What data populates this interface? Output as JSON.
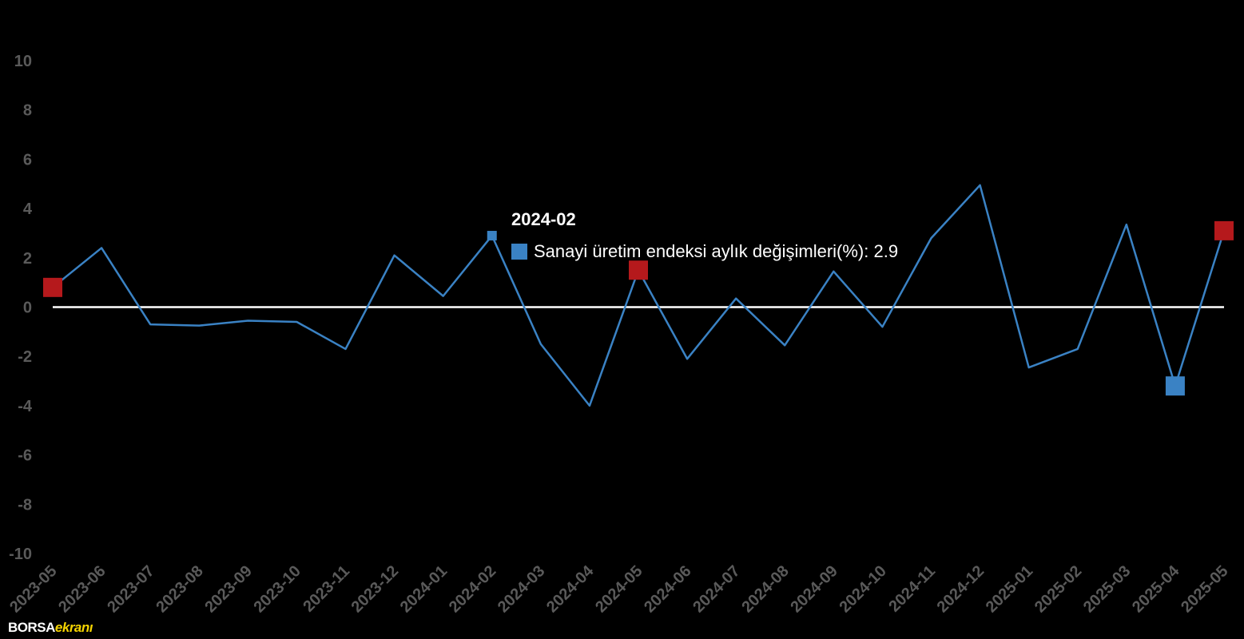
{
  "chart_data": {
    "type": "line",
    "categories": [
      "2023-05",
      "2023-06",
      "2023-07",
      "2023-08",
      "2023-09",
      "2023-10",
      "2023-11",
      "2023-12",
      "2024-01",
      "2024-02",
      "2024-03",
      "2024-04",
      "2024-05",
      "2024-06",
      "2024-07",
      "2024-08",
      "2024-09",
      "2024-10",
      "2024-11",
      "2024-12",
      "2025-01",
      "2025-02",
      "2025-03",
      "2025-04",
      "2025-05"
    ],
    "series": [
      {
        "name": "Sanayi üretim endeksi aylık değişimleri(%)",
        "values": [
          0.8,
          2.4,
          -0.7,
          -0.75,
          -0.55,
          -0.6,
          -1.7,
          2.1,
          0.45,
          2.9,
          -1.5,
          -4.0,
          1.5,
          -2.1,
          0.35,
          -1.55,
          1.45,
          -0.8,
          2.8,
          4.95,
          -2.45,
          -1.7,
          3.35,
          -3.2,
          3.1
        ],
        "color": "#3a82c4"
      }
    ],
    "ylim": [
      -10,
      10
    ],
    "yticks": [
      10,
      8,
      6,
      4,
      2,
      0,
      -2,
      -4,
      -6,
      -8,
      -10
    ],
    "xlabel": "",
    "ylabel": "",
    "grid": false,
    "highlight_markers": [
      {
        "category": "2023-05",
        "color": "#b5191c"
      },
      {
        "category": "2024-05",
        "color": "#b5191c"
      },
      {
        "category": "2025-05",
        "color": "#b5191c"
      },
      {
        "category": "2025-04",
        "color": "#3a82c4"
      }
    ]
  },
  "tooltip": {
    "title": "2024-02",
    "label": "Sanayi üretim endeksi aylık değişimleri(%): 2.9"
  },
  "logo": {
    "part1": "BORSA",
    "part2": "ekranı"
  }
}
